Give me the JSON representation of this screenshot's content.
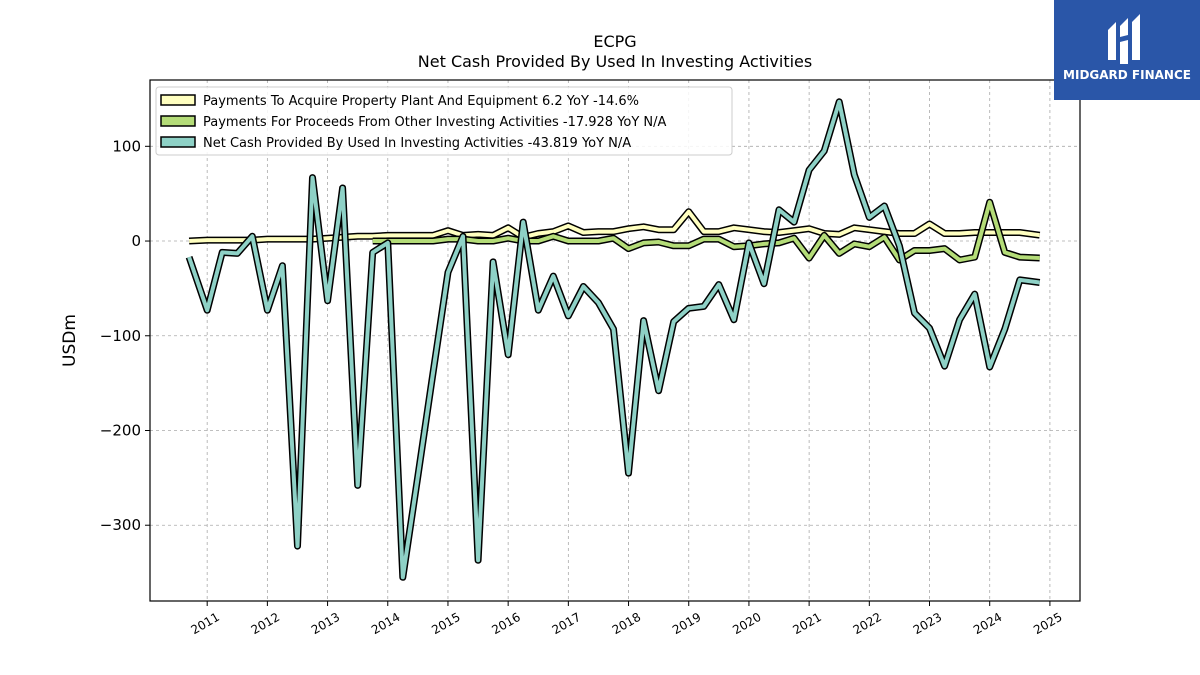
{
  "header": {
    "title": "ECPG",
    "subtitle": "Net Cash Provided By Used In Investing Activities"
  },
  "brand": {
    "name": "MIDGARD FINANCE",
    "color": "#2a56a8",
    "icon": "midgard-logo-icon"
  },
  "chart_data": {
    "type": "line",
    "title": "ECPG",
    "subtitle": "Net Cash Provided By Used In Investing Activities",
    "xlabel": "",
    "ylabel": "USDm",
    "xlim": [
      2010.05,
      2025.5
    ],
    "ylim": [
      -380,
      170
    ],
    "grid": true,
    "legend_position": "top-left",
    "yticks": [
      100,
      0,
      -100,
      -200,
      -300
    ],
    "ytick_labels": [
      "100",
      "0",
      "−100",
      "−200",
      "−300"
    ],
    "xticks": [
      2011,
      2012,
      2013,
      2014,
      2015,
      2016,
      2017,
      2018,
      2019,
      2020,
      2021,
      2022,
      2023,
      2024,
      2025
    ],
    "xtick_labels": [
      "2011",
      "2012",
      "2013",
      "2014",
      "2015",
      "2016",
      "2017",
      "2018",
      "2019",
      "2020",
      "2021",
      "2022",
      "2023",
      "2024",
      "2025"
    ],
    "series": [
      {
        "name": "Payments To Acquire Property Plant And Equipment",
        "legend_label": "Payments To Acquire Property Plant And Equipment  6.2 YoY -14.6%",
        "color": "#ffffc0",
        "x": [
          2010.7,
          2011.0,
          2011.25,
          2011.5,
          2011.75,
          2012.0,
          2012.25,
          2012.5,
          2012.75,
          2013.0,
          2013.25,
          2013.5,
          2013.75,
          2014.0,
          2014.25,
          2014.5,
          2014.75,
          2015.0,
          2015.25,
          2015.5,
          2015.75,
          2016.0,
          2016.25,
          2016.5,
          2016.75,
          2017.0,
          2017.25,
          2017.5,
          2017.75,
          2018.0,
          2018.25,
          2018.5,
          2018.75,
          2019.0,
          2019.25,
          2019.5,
          2019.75,
          2020.0,
          2020.25,
          2020.5,
          2020.75,
          2021.0,
          2021.25,
          2021.5,
          2021.75,
          2022.0,
          2022.25,
          2022.5,
          2022.75,
          2023.0,
          2023.25,
          2023.5,
          2023.75,
          2024.0,
          2024.25,
          2024.5,
          2024.83
        ],
        "values": [
          0,
          1,
          1,
          1,
          1,
          2,
          2,
          2,
          2,
          3,
          4,
          5,
          5,
          6,
          6,
          6,
          6,
          11,
          6,
          7,
          6,
          14,
          4,
          8,
          10,
          16,
          9,
          10,
          10,
          13,
          15,
          12,
          12,
          31,
          10,
          10,
          14,
          12,
          10,
          9,
          11,
          13,
          8,
          7,
          14,
          12,
          10,
          8,
          8,
          18,
          8,
          8,
          9,
          9,
          9,
          9,
          6.2
        ]
      },
      {
        "name": "Payments For Proceeds From Other Investing Activities",
        "legend_label": "Payments For Proceeds From Other Investing Activities  -17.928 YoY N/A",
        "color": "#b4dc78",
        "x": [
          2013.75,
          2014.0,
          2014.25,
          2014.5,
          2014.75,
          2015.0,
          2015.25,
          2015.5,
          2015.75,
          2016.0,
          2016.25,
          2016.5,
          2016.75,
          2017.0,
          2017.25,
          2017.5,
          2017.75,
          2018.0,
          2018.25,
          2018.5,
          2018.75,
          2019.0,
          2019.25,
          2019.5,
          2019.75,
          2020.0,
          2020.25,
          2020.5,
          2020.75,
          2021.0,
          2021.25,
          2021.5,
          2021.75,
          2022.0,
          2022.25,
          2022.5,
          2022.75,
          2023.0,
          2023.25,
          2023.5,
          2023.75,
          2024.0,
          2024.25,
          2024.5,
          2024.83
        ],
        "values": [
          0,
          0,
          0,
          0,
          0,
          2,
          2,
          0,
          0,
          3,
          0,
          0,
          5,
          0,
          0,
          0,
          3,
          -8,
          -2,
          -1,
          -5,
          -5,
          2,
          2,
          -6,
          -5,
          -3,
          -2,
          3,
          -18,
          6,
          -13,
          -3,
          -6,
          4,
          -20,
          -10,
          -10,
          -8,
          -20,
          -17,
          41,
          -12,
          -17,
          -17.928
        ]
      },
      {
        "name": "Net Cash Provided By Used In Investing Activities",
        "legend_label": "Net Cash Provided By Used In Investing Activities  -43.819 YoY N/A",
        "color": "#8ed1c6",
        "x": [
          2010.7,
          2011.0,
          2011.25,
          2011.5,
          2011.75,
          2012.0,
          2012.25,
          2012.5,
          2012.75,
          2013.0,
          2013.25,
          2013.5,
          2013.75,
          2014.0,
          2014.25,
          2014.5,
          2014.75,
          2015.0,
          2015.25,
          2015.5,
          2015.75,
          2016.0,
          2016.25,
          2016.5,
          2016.75,
          2017.0,
          2017.25,
          2017.5,
          2017.75,
          2018.0,
          2018.25,
          2018.5,
          2018.75,
          2019.0,
          2019.25,
          2019.5,
          2019.75,
          2020.0,
          2020.25,
          2020.5,
          2020.75,
          2021.0,
          2021.25,
          2021.5,
          2021.75,
          2022.0,
          2022.25,
          2022.5,
          2022.75,
          2023.0,
          2023.25,
          2023.5,
          2023.75,
          2024.0,
          2024.25,
          2024.5,
          2024.83
        ],
        "values": [
          -17,
          -73,
          -12,
          -13,
          5,
          -73,
          -26,
          -322,
          67,
          -63,
          56,
          -258,
          -12,
          -2,
          -355,
          -248,
          -140,
          -33,
          5,
          -337,
          -22,
          -120,
          20,
          -73,
          -37,
          -79,
          -48,
          -65,
          -93,
          -245,
          -84,
          -158,
          -85,
          -71,
          -69,
          -46,
          -83,
          -2,
          -45,
          33,
          20,
          75,
          95,
          147,
          70,
          25,
          37,
          -5,
          -76,
          -92,
          -132,
          -83,
          -56,
          -133,
          -93,
          -41,
          -43.819
        ]
      }
    ]
  }
}
